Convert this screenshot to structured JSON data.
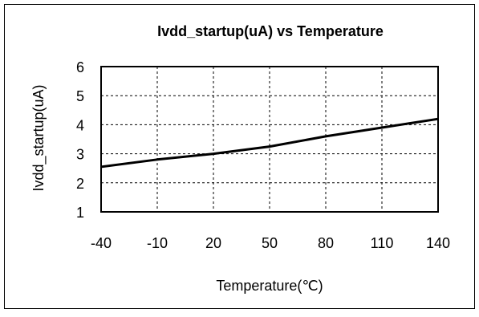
{
  "chart_data": {
    "type": "line",
    "title": "Ivdd_startup(uA)  vs Temperature",
    "xlabel": "Temperature(℃)",
    "ylabel": "Ivdd_startup(uA)",
    "x_ticks": [
      "-40",
      "-10",
      "20",
      "50",
      "80",
      "110",
      "140"
    ],
    "y_ticks": [
      "1",
      "2",
      "3",
      "4",
      "5",
      "6"
    ],
    "xlim": [
      -40,
      140
    ],
    "ylim": [
      1,
      6
    ],
    "grid": true,
    "legend": "none",
    "series": [
      {
        "color": "#000000",
        "x": [
          -40,
          -10,
          20,
          50,
          80,
          110,
          140
        ],
        "y": [
          2.55,
          2.8,
          3.0,
          3.25,
          3.6,
          3.9,
          4.2
        ]
      }
    ]
  }
}
